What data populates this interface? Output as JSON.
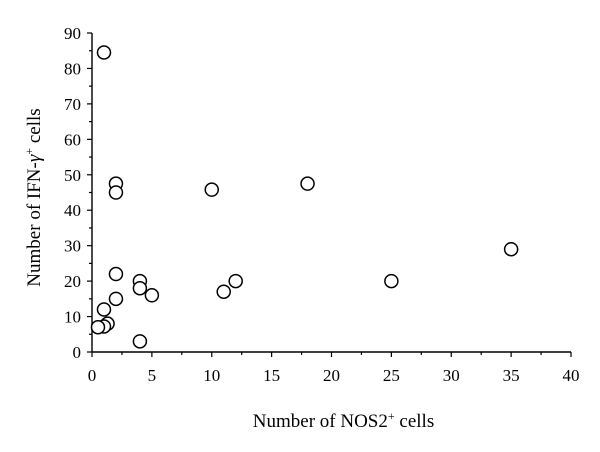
{
  "chart_data": {
    "type": "scatter",
    "title": "",
    "xlabel": {
      "prefix": "Number of NOS2",
      "sup": "+",
      "suffix": " cells"
    },
    "ylabel": {
      "prefix": "Number of IFN-",
      "gamma": "γ",
      "sup": "+",
      "suffix": " cells"
    },
    "xlim": [
      0,
      40
    ],
    "ylim": [
      0,
      90
    ],
    "x_ticks": [
      0,
      5,
      10,
      15,
      20,
      25,
      30,
      35,
      40
    ],
    "y_ticks": [
      0,
      10,
      20,
      30,
      40,
      50,
      60,
      70,
      80,
      90
    ],
    "grid": false,
    "legend": "none",
    "marker": "open-circle",
    "colors": {
      "marker_edge": "#000000",
      "marker_fill": "#ffffff",
      "axis": "#000000"
    },
    "points": [
      {
        "x": 1,
        "y": 84.5
      },
      {
        "x": 2,
        "y": 47.5
      },
      {
        "x": 2,
        "y": 45
      },
      {
        "x": 10,
        "y": 45.8
      },
      {
        "x": 18,
        "y": 47.5
      },
      {
        "x": 35,
        "y": 29
      },
      {
        "x": 2,
        "y": 22
      },
      {
        "x": 4,
        "y": 20
      },
      {
        "x": 4,
        "y": 18
      },
      {
        "x": 5,
        "y": 16
      },
      {
        "x": 2,
        "y": 15
      },
      {
        "x": 12,
        "y": 20
      },
      {
        "x": 11,
        "y": 17
      },
      {
        "x": 25,
        "y": 20
      },
      {
        "x": 1,
        "y": 12
      },
      {
        "x": 1.3,
        "y": 8
      },
      {
        "x": 1,
        "y": 7.2
      },
      {
        "x": 0.5,
        "y": 7
      },
      {
        "x": 4,
        "y": 3
      }
    ]
  }
}
